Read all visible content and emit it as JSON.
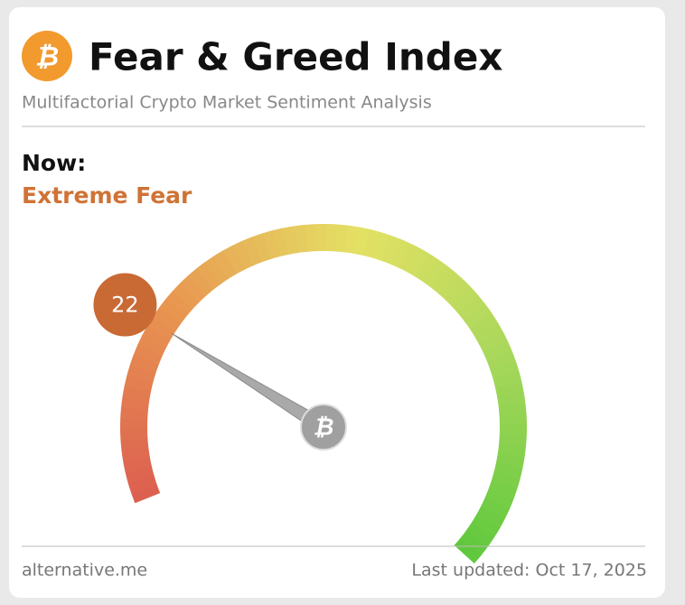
{
  "chart_data": {
    "type": "gauge",
    "title": "Fear & Greed Index",
    "subtitle": "Multifactorial Crypto Market Sentiment Analysis",
    "label": "Now:",
    "classification": "Extreme Fear",
    "value": 22,
    "ylim": [
      0,
      100
    ],
    "color": "#c96a35"
  },
  "footer": {
    "source": "alternative.me",
    "updated": "Last updated: Oct 17, 2025"
  }
}
